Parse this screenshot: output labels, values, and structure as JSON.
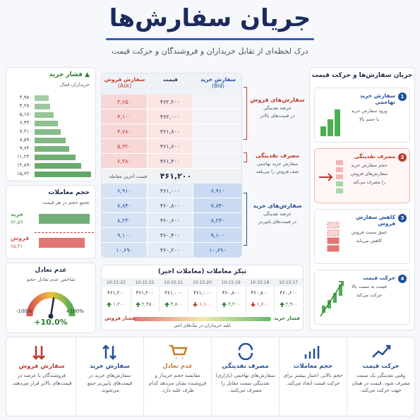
{
  "header": {
    "title": "جریان سفارش‌ها",
    "subtitle": "درک لحظه‌ای از تقابل خریداران و فروشندگان و حرکت قیمت"
  },
  "buy_pressure": {
    "title": "فشار خرید",
    "subtitle": "خریداران فعال",
    "color": "#5aa35e",
    "bars": [
      {
        "value": 3980,
        "label": "۳,۹۸۰"
      },
      {
        "value": 4270,
        "label": "۴,۲۷۰"
      },
      {
        "value": 5180,
        "label": "۵,۱۸۰"
      },
      {
        "value": 6430,
        "label": "۶,۴۳۰"
      },
      {
        "value": 7210,
        "label": "۷,۲۱۰"
      },
      {
        "value": 8590,
        "label": "۸,۵۹۰"
      },
      {
        "value": 9640,
        "label": "۹,۶۴۰"
      },
      {
        "value": 11230,
        "label": "۱۱,۲۳۰"
      },
      {
        "value": 12890,
        "label": "۱۲,۸۹۰"
      },
      {
        "value": 15620,
        "label": "۱۵,۶۲۰"
      }
    ]
  },
  "volume": {
    "title": "حجم معاملات",
    "subtitle": "تجمع حجم در هر قیمت",
    "buy": {
      "name": "خرید",
      "value": 72590,
      "label": "۷۲,۵۹۰",
      "color": "#4e9a52"
    },
    "sell": {
      "name": "فروش",
      "value": 65310,
      "label": "۶۵,۳۱۰",
      "color": "#d9534f"
    }
  },
  "imbalance": {
    "title": "عدم تعادل",
    "subtitle": "شاخص عدم تعادل حجم",
    "min": {
      "value": -100,
      "label": "-100%"
    },
    "max": {
      "value": 100,
      "label": "+100%"
    },
    "value": {
      "value": 10,
      "label": "+10.0%"
    }
  },
  "order_book": {
    "headers": {
      "ask": "سفارش فروش",
      "ask_en": "(Ask)",
      "price": "قیمت",
      "bid": "سفارش خرید",
      "bid_en": "(Bid)"
    },
    "asks": [
      {
        "ask": "۳,۶۵۰",
        "price": "۴۶۲,۲۰۰"
      },
      {
        "ask": "۴,۱۰۰",
        "price": "۴۶۲,۰۰۰"
      },
      {
        "ask": "۴,۷۸۰",
        "price": "۴۶۱,۸۰۰"
      },
      {
        "ask": "۵,۳۲۰",
        "price": "۴۶۱,۶۰۰"
      },
      {
        "ask": "۶,۳۸۰",
        "price": "۴۶۱,۴۰۰"
      }
    ],
    "last": {
      "label": "قیمت آخرین معامله",
      "price": "۴۶۱,۲۰۰"
    },
    "bids": [
      {
        "ask": "۶,۹۱۰",
        "price": "۴۶۱,۰۰۰",
        "bid": "۶,۹۱۰"
      },
      {
        "ask": "۷,۸۴۰",
        "price": "۴۶۰,۸۰۰",
        "bid": "۷,۸۴۰"
      },
      {
        "ask": "۸,۲۳۰",
        "price": "۴۶۰,۶۰۰",
        "bid": "۸,۲۳۰"
      },
      {
        "ask": "۹,۱۰۰",
        "price": "۴۶۰,۴۰۰",
        "bid": "۹,۱۰۰"
      },
      {
        "ask": "۱۰,۶۹۰",
        "price": "۴۶۰,۲۰۰",
        "bid": "۱۰,۶۹۰"
      }
    ]
  },
  "annotations": [
    {
      "title": "سفارش‌های فروش",
      "lines": [
        "عرضه نقدینگی",
        "در قیمت‌های بالاتر"
      ],
      "color": "#c0392b"
    },
    {
      "title": "مصرف نقدینگی",
      "lines": [
        "سفارش خرید تهاجمی",
        "صف فروش را می‌بلعد"
      ],
      "color": "#c0392b"
    },
    {
      "title": "سفارش‌های خرید",
      "lines": [
        "عرضه نقدینگی",
        "در قیمت‌های پایین‌تر"
      ],
      "color": "#1f4f9a"
    }
  ],
  "ticker": {
    "title": "تیکر معاملات (معاملات اخیر)",
    "trades": [
      {
        "time": "10:15:23",
        "price": "۴۶۱,۲۰۰",
        "volume": "۱,۲۰۰",
        "dir": "up"
      },
      {
        "time": "10:15:22",
        "price": "۴۶۱,۲۰۰",
        "volume": "۲,۴۵۰",
        "dir": "up"
      },
      {
        "time": "10:15:21",
        "price": "۴۶۱,۰۰۰",
        "volume": "۳,۸۰۰",
        "dir": "up"
      },
      {
        "time": "10:15:20",
        "price": "۴۶۱,۰۰۰",
        "volume": "۱,۱۰۰",
        "dir": "down"
      },
      {
        "time": "10:15:19",
        "price": "۴۶۰,۸۰۰",
        "volume": "۲,۲۰۰",
        "dir": "up"
      },
      {
        "time": "10:15:18",
        "price": "۴۶۰,۸۰۰",
        "volume": "۱,۶۰۰",
        "dir": "down"
      },
      {
        "time": "10:15:17",
        "price": "۴۶۰,۶۰۰",
        "volume": "۲,۹۰۰",
        "dir": "up"
      }
    ],
    "sell_label": "فشار فروش",
    "buy_label": "فشار خرید",
    "caption": "غلبه خریداران در تیک‌های اخیر"
  },
  "flow": {
    "title": "جریان سفارش‌ها و حرکت قیمت",
    "steps": [
      {
        "number": 1,
        "title": "سفارش خرید تهاجمی",
        "lines": [
          "ورود سفارش خرید",
          "با حجم بالا"
        ],
        "color": "#1f4f9a"
      },
      {
        "number": 2,
        "title": "مصرف نقدینگی",
        "lines": [
          "حجم سفارش خرید",
          "سفارش‌های فروش",
          "را مصرف می‌کند"
        ],
        "color": "#c0392b"
      },
      {
        "number": 3,
        "title": "کاهش سفارش فروش",
        "lines": [
          "عمق سمت فروش",
          "کاهش می‌یابد"
        ],
        "color": "#1f4f9a"
      },
      {
        "number": 4,
        "title": "حرکت قیمت",
        "lines": [
          "قیمت به سمت بالا",
          "حرکت می‌کند"
        ],
        "color": "#1f4f9a"
      }
    ]
  },
  "cards": [
    {
      "title": "حرکت قیمت",
      "text": "وقتی نقدینگی یک سمت مصرف شود، قیمت در همان جهت حرکت می‌کند."
    },
    {
      "title": "حجم معاملات",
      "text": "حجم بالاتر، اعتبار بیشتر برای حرکت قیمت ایجاد می‌کند."
    },
    {
      "title": "مصرف نقدینگی",
      "text": "سفارش‌های تهاجمی (بازاری) نقدینگی سمت مقابل را مصرف می‌کنند."
    },
    {
      "title": "عدم تعادل",
      "text": "مقایسه حجم خریدار و فروشنده نشان می‌دهد کدام طرف غلبه دارد."
    },
    {
      "title": "سفارش خرید",
      "text": "سفارش‌های خرید در قیمت‌های پایین‌تر جمع می‌شوند."
    },
    {
      "title": "سفارش فروش",
      "text": "فروشندگان با عرضه در قیمت‌های بالاتر قرار می‌دهند."
    }
  ]
}
